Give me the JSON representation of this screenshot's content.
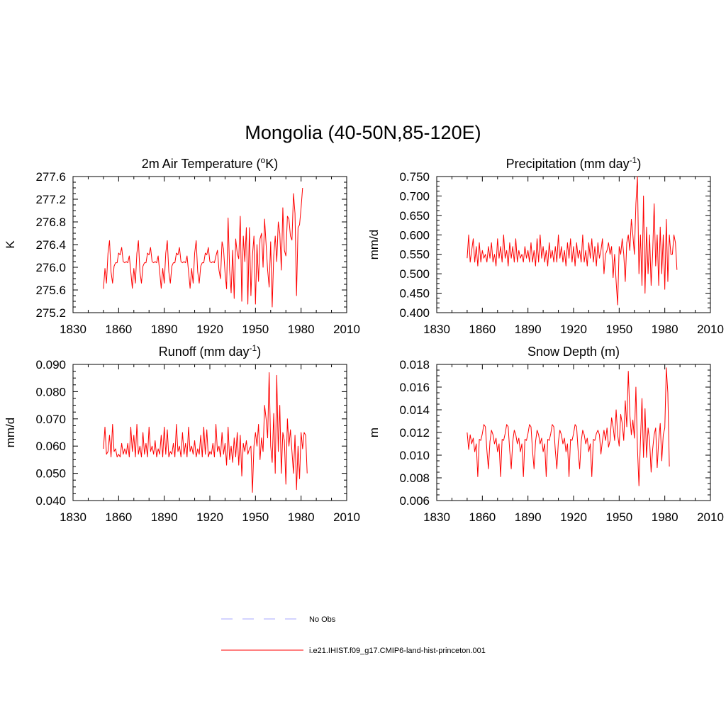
{
  "figure": {
    "title": "Mongolia (40-50N,85-120E)",
    "series_color": "#ff0000",
    "obs_color": "#aaaaff"
  },
  "legend": {
    "items": [
      {
        "label": "No Obs",
        "style": "dashed",
        "color": "#aaaaff"
      },
      {
        "label": "i.e21.IHIST.f09_g17.CMIP6-land-hist-princeton.001",
        "style": "solid",
        "color": "#ff0000"
      }
    ]
  },
  "chart_data": [
    {
      "type": "line",
      "title_main": "2m Air Temperature (",
      "title_sup": "o",
      "title_end": "K)",
      "ylabel": "K",
      "xlim": [
        1830,
        2010
      ],
      "xticks": [
        "1830",
        "1860",
        "1890",
        "1920",
        "1950",
        "1980",
        "2010"
      ],
      "ylim": [
        275.2,
        277.6
      ],
      "yticks": [
        "275.2",
        "275.6",
        "276.0",
        "276.4",
        "276.8",
        "277.2",
        "277.6"
      ],
      "x_start": 1850,
      "values": [
        275.62,
        275.98,
        275.72,
        276.25,
        276.47,
        275.92,
        275.72,
        276.02,
        276.08,
        276.08,
        276.25,
        276.22,
        276.35,
        276.1,
        276.08,
        276.1,
        276.08,
        276.2,
        275.92,
        275.63,
        275.98,
        275.72,
        276.25,
        276.47,
        275.92,
        275.72,
        276.02,
        276.08,
        276.08,
        276.25,
        276.22,
        276.35,
        276.1,
        276.08,
        276.1,
        276.08,
        276.2,
        275.92,
        275.63,
        275.98,
        275.72,
        276.25,
        276.47,
        275.92,
        275.72,
        276.02,
        276.08,
        276.08,
        276.25,
        276.22,
        276.35,
        276.1,
        276.08,
        276.1,
        276.08,
        276.2,
        275.92,
        275.63,
        275.98,
        275.72,
        276.25,
        276.47,
        275.92,
        275.72,
        276.02,
        276.08,
        276.08,
        276.25,
        276.22,
        276.35,
        276.1,
        276.08,
        276.1,
        276.08,
        276.2,
        276.3,
        275.95,
        275.8,
        276.45,
        276.32,
        275.9,
        275.62,
        276.87,
        275.95,
        275.55,
        276.3,
        275.45,
        276.5,
        276.25,
        276.15,
        276.9,
        275.4,
        276.55,
        276.1,
        276.7,
        275.35,
        276.7,
        275.5,
        276.2,
        276.55,
        275.35,
        276.4,
        275.75,
        276.5,
        276.6,
        276.0,
        276.85,
        276.4,
        275.95,
        275.65,
        276.45,
        275.3,
        276.2,
        276.55,
        276.1,
        276.8,
        276.6,
        275.95,
        277.05,
        276.3,
        276.2,
        276.9,
        276.85,
        276.55,
        276.48,
        277.3,
        276.95,
        275.5,
        276.7,
        276.75,
        277.05,
        277.4
      ]
    },
    {
      "type": "line",
      "title_main": "Precipitation (mm day",
      "title_sup": "-1",
      "title_end": ")",
      "ylabel": "mm/d",
      "xlim": [
        1830,
        2010
      ],
      "xticks": [
        "1830",
        "1860",
        "1890",
        "1920",
        "1950",
        "1980",
        "2010"
      ],
      "ylim": [
        0.4,
        0.75
      ],
      "yticks": [
        "0.400",
        "0.450",
        "0.500",
        "0.550",
        "0.600",
        "0.650",
        "0.700",
        "0.750"
      ],
      "x_start": 1850,
      "values": [
        0.54,
        0.6,
        0.53,
        0.56,
        0.59,
        0.53,
        0.57,
        0.52,
        0.58,
        0.53,
        0.56,
        0.54,
        0.55,
        0.53,
        0.57,
        0.54,
        0.58,
        0.53,
        0.55,
        0.52,
        0.59,
        0.54,
        0.57,
        0.53,
        0.6,
        0.54,
        0.56,
        0.52,
        0.58,
        0.54,
        0.57,
        0.53,
        0.59,
        0.53,
        0.56,
        0.54,
        0.55,
        0.53,
        0.57,
        0.54,
        0.56,
        0.53,
        0.58,
        0.53,
        0.56,
        0.52,
        0.59,
        0.53,
        0.6,
        0.54,
        0.57,
        0.53,
        0.56,
        0.52,
        0.58,
        0.54,
        0.56,
        0.53,
        0.57,
        0.53,
        0.6,
        0.54,
        0.57,
        0.53,
        0.56,
        0.52,
        0.58,
        0.54,
        0.59,
        0.53,
        0.57,
        0.52,
        0.58,
        0.54,
        0.56,
        0.53,
        0.6,
        0.53,
        0.56,
        0.52,
        0.58,
        0.54,
        0.59,
        0.53,
        0.57,
        0.52,
        0.58,
        0.54,
        0.56,
        0.59,
        0.5,
        0.55,
        0.56,
        0.58,
        0.55,
        0.57,
        0.49,
        0.55,
        0.48,
        0.42,
        0.57,
        0.55,
        0.59,
        0.55,
        0.48,
        0.58,
        0.6,
        0.56,
        0.64,
        0.6,
        0.55,
        0.68,
        0.75,
        0.5,
        0.6,
        0.47,
        0.7,
        0.45,
        0.62,
        0.5,
        0.6,
        0.47,
        0.55,
        0.68,
        0.52,
        0.6,
        0.47,
        0.62,
        0.5,
        0.6,
        0.46,
        0.64,
        0.48,
        0.6,
        0.55,
        0.55,
        0.6,
        0.58,
        0.51
      ]
    },
    {
      "type": "line",
      "title_main": "Runoff (mm day",
      "title_sup": "-1",
      "title_end": ")",
      "ylabel": "mm/d",
      "xlim": [
        1830,
        2010
      ],
      "xticks": [
        "1830",
        "1860",
        "1890",
        "1920",
        "1950",
        "1980",
        "2010"
      ],
      "ylim": [
        0.04,
        0.09
      ],
      "yticks": [
        "0.040",
        "0.050",
        "0.060",
        "0.070",
        "0.080",
        "0.090"
      ],
      "x_start": 1850,
      "values": [
        0.059,
        0.067,
        0.057,
        0.058,
        0.064,
        0.056,
        0.068,
        0.058,
        0.059,
        0.056,
        0.057,
        0.056,
        0.061,
        0.057,
        0.059,
        0.057,
        0.061,
        0.056,
        0.067,
        0.058,
        0.064,
        0.056,
        0.068,
        0.057,
        0.06,
        0.056,
        0.065,
        0.057,
        0.061,
        0.056,
        0.067,
        0.058,
        0.06,
        0.057,
        0.062,
        0.056,
        0.059,
        0.057,
        0.064,
        0.056,
        0.067,
        0.057,
        0.066,
        0.056,
        0.058,
        0.057,
        0.061,
        0.056,
        0.068,
        0.058,
        0.06,
        0.056,
        0.065,
        0.057,
        0.061,
        0.056,
        0.067,
        0.058,
        0.06,
        0.057,
        0.062,
        0.056,
        0.059,
        0.057,
        0.064,
        0.056,
        0.067,
        0.057,
        0.066,
        0.056,
        0.058,
        0.057,
        0.061,
        0.056,
        0.068,
        0.058,
        0.06,
        0.056,
        0.065,
        0.057,
        0.061,
        0.053,
        0.067,
        0.055,
        0.06,
        0.054,
        0.063,
        0.056,
        0.065,
        0.053,
        0.064,
        0.049,
        0.061,
        0.058,
        0.062,
        0.057,
        0.059,
        0.06,
        0.043,
        0.06,
        0.065,
        0.06,
        0.068,
        0.055,
        0.063,
        0.058,
        0.075,
        0.07,
        0.063,
        0.087,
        0.06,
        0.054,
        0.072,
        0.05,
        0.086,
        0.058,
        0.075,
        0.05,
        0.065,
        0.062,
        0.046,
        0.07,
        0.06,
        0.066,
        0.058,
        0.05,
        0.064,
        0.044,
        0.06,
        0.048,
        0.065,
        0.059,
        0.065,
        0.064,
        0.05
      ]
    },
    {
      "type": "line",
      "title_main": "Snow Depth (m)",
      "title_sup": "",
      "title_end": "",
      "ylabel": "m",
      "xlim": [
        1830,
        2010
      ],
      "xticks": [
        "1830",
        "1860",
        "1890",
        "1920",
        "1950",
        "1980",
        "2010"
      ],
      "ylim": [
        0.006,
        0.018
      ],
      "yticks": [
        "0.006",
        "0.008",
        "0.010",
        "0.012",
        "0.014",
        "0.016",
        "0.018"
      ],
      "x_start": 1850,
      "values": [
        0.012,
        0.0105,
        0.0118,
        0.011,
        0.0115,
        0.0103,
        0.011,
        0.0081,
        0.0114,
        0.0113,
        0.0119,
        0.0127,
        0.0125,
        0.0104,
        0.0088,
        0.0112,
        0.0122,
        0.0118,
        0.011,
        0.0115,
        0.0103,
        0.011,
        0.0081,
        0.0114,
        0.0113,
        0.0119,
        0.0127,
        0.0125,
        0.0104,
        0.0088,
        0.0112,
        0.0122,
        0.0118,
        0.011,
        0.0115,
        0.0103,
        0.011,
        0.0081,
        0.0114,
        0.0113,
        0.0119,
        0.0127,
        0.0125,
        0.0104,
        0.0088,
        0.0112,
        0.0122,
        0.0118,
        0.011,
        0.0115,
        0.0103,
        0.011,
        0.0081,
        0.0114,
        0.0113,
        0.0119,
        0.0127,
        0.0125,
        0.0104,
        0.0088,
        0.0112,
        0.0122,
        0.0118,
        0.011,
        0.0115,
        0.0103,
        0.011,
        0.0081,
        0.0114,
        0.0113,
        0.0119,
        0.0127,
        0.0125,
        0.0104,
        0.0088,
        0.0112,
        0.0122,
        0.0118,
        0.011,
        0.0115,
        0.0103,
        0.011,
        0.0081,
        0.0114,
        0.0113,
        0.0119,
        0.0122,
        0.0118,
        0.0101,
        0.0113,
        0.0122,
        0.0113,
        0.0124,
        0.0107,
        0.0113,
        0.0133,
        0.0125,
        0.0113,
        0.014,
        0.0118,
        0.0108,
        0.0136,
        0.0128,
        0.0113,
        0.0148,
        0.0125,
        0.0174,
        0.0136,
        0.0118,
        0.0131,
        0.0115,
        0.016,
        0.0107,
        0.0073,
        0.0113,
        0.015,
        0.0098,
        0.0141,
        0.0098,
        0.0124,
        0.0113,
        0.0085,
        0.0105,
        0.0118,
        0.0124,
        0.0089,
        0.0113,
        0.0128,
        0.0095,
        0.0118,
        0.0124,
        0.0177,
        0.0155,
        0.009
      ]
    }
  ]
}
